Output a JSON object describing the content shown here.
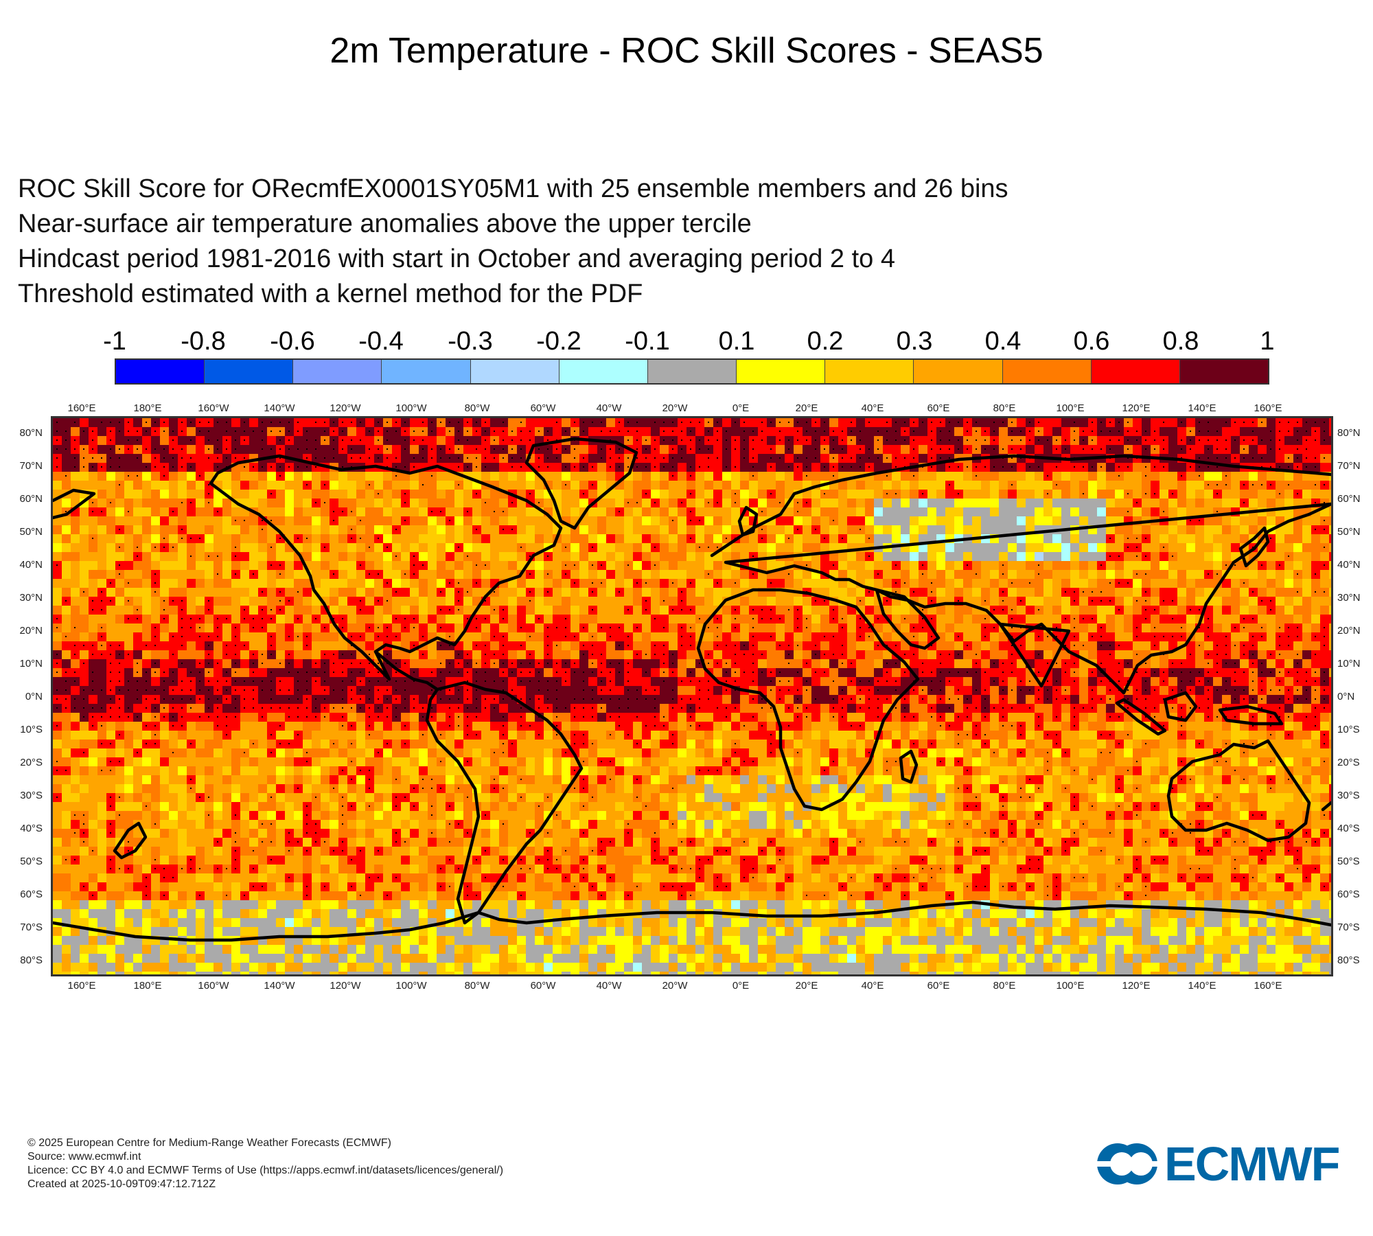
{
  "title": "2m Temperature - ROC Skill Scores - SEAS5",
  "subtitle_lines": [
    "ROC Skill Score for ORecmfEX0001SY05M1 with 25 ensemble members and 26 bins",
    "Near-surface air temperature anomalies above the upper tercile",
    "Hindcast period 1981-2016 with start in October and averaging period  2 to  4",
    "Threshold estimated with a kernel method for the PDF"
  ],
  "legend": {
    "labels": [
      "-1",
      "-0.8",
      "-0.6",
      "-0.4",
      "-0.3",
      "-0.2",
      "-0.1",
      "0.1",
      "0.2",
      "0.3",
      "0.4",
      "0.6",
      "0.8",
      "1"
    ],
    "colors": [
      "#0000ff",
      "#0059e6",
      "#7f9cff",
      "#70b4ff",
      "#b0d8ff",
      "#adffff",
      "#aaaaaa",
      "#ffff00",
      "#ffcc00",
      "#ffa500",
      "#ff7b00",
      "#ff0000",
      "#6d0018"
    ]
  },
  "map": {
    "lon_labels": [
      "160°E",
      "180°E",
      "160°W",
      "140°W",
      "120°W",
      "100°W",
      "80°W",
      "60°W",
      "40°W",
      "20°W",
      "0°E",
      "20°E",
      "40°E",
      "60°E",
      "80°E",
      "100°E",
      "120°E",
      "140°E",
      "160°E"
    ],
    "lat_labels": [
      "80°N",
      "70°N",
      "60°N",
      "50°N",
      "40°N",
      "30°N",
      "20°N",
      "10°N",
      "0°N",
      "10°S",
      "20°S",
      "30°S",
      "40°S",
      "50°S",
      "60°S",
      "70°S",
      "80°S"
    ],
    "lon_range": [
      -210,
      180
    ],
    "lat_range": [
      -87,
      83
    ]
  },
  "footer": {
    "lines": [
      "© 2025 European Centre for Medium-Range Weather Forecasts (ECMWF)",
      "Source: www.ecmwf.int",
      "Licence: CC BY 4.0 and ECMWF Terms of Use (https://apps.ecmwf.int/datasets/licences/general/)",
      "Created at 2025-10-09T09:47:12.712Z"
    ]
  },
  "logo": {
    "text": "ECMWF",
    "color": "#0067a6"
  },
  "outline_color": "#000000"
}
